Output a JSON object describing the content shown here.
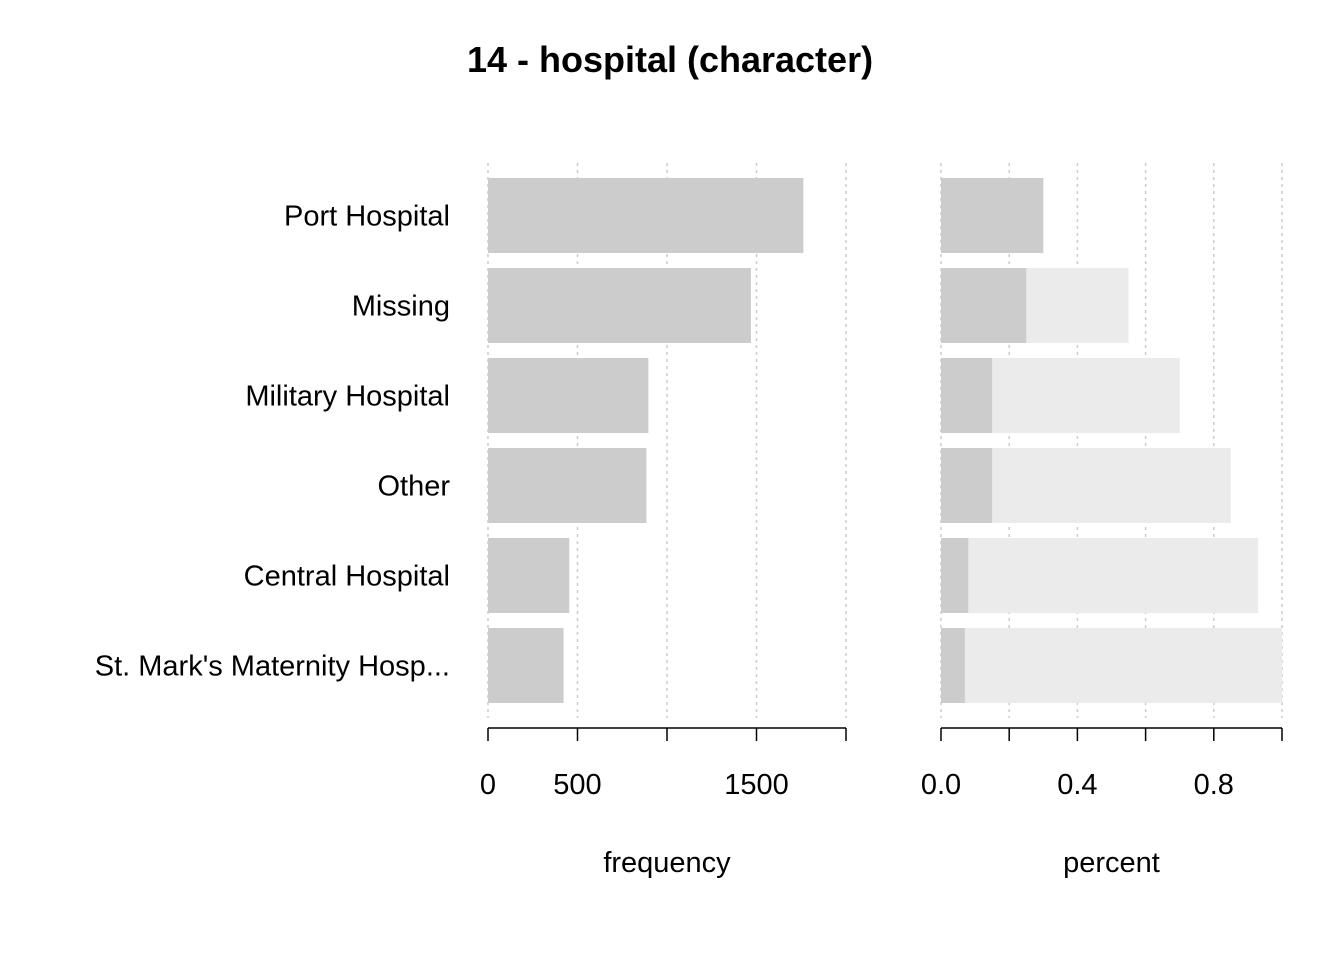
{
  "chart_data": {
    "type": "bar",
    "title": "14 - hospital (character)",
    "categories": [
      "Port Hospital",
      "Missing",
      "Military Hospital",
      "Other",
      "Central Hospital",
      "St. Mark's Maternity Hosp..."
    ],
    "panels": [
      {
        "id": "frequency",
        "xlabel": "frequency",
        "xlim": [
          0,
          2000
        ],
        "tick_values": [
          0,
          500,
          1000,
          1500,
          2000
        ],
        "tick_labels": [
          {
            "value": 0,
            "label": "0"
          },
          {
            "value": 500,
            "label": "500"
          },
          {
            "value": 1500,
            "label": "1500"
          }
        ],
        "grid": true,
        "series": [
          {
            "values": [
              1762,
              1469,
              896,
              885,
              454,
              422
            ]
          }
        ]
      },
      {
        "id": "percent",
        "xlabel": "percent",
        "xlim": [
          0,
          1
        ],
        "tick_values": [
          0,
          0.2,
          0.4,
          0.6,
          0.8,
          1.0
        ],
        "tick_labels": [
          {
            "value": 0,
            "label": "0.0"
          },
          {
            "value": 0.4,
            "label": "0.4"
          },
          {
            "value": 0.8,
            "label": "0.8"
          }
        ],
        "grid": true,
        "series": [
          {
            "role": "proportion",
            "values": [
              0.3,
              0.25,
              0.15,
              0.15,
              0.08,
              0.07
            ]
          },
          {
            "role": "cumulative",
            "values": [
              0.3,
              0.55,
              0.7,
              0.85,
              0.93,
              1.0
            ]
          }
        ]
      }
    ],
    "colors": {
      "bar": "#cccccc",
      "cumulative": "#ebebeb",
      "grid": "#cccccc",
      "axis": "#000000"
    }
  }
}
